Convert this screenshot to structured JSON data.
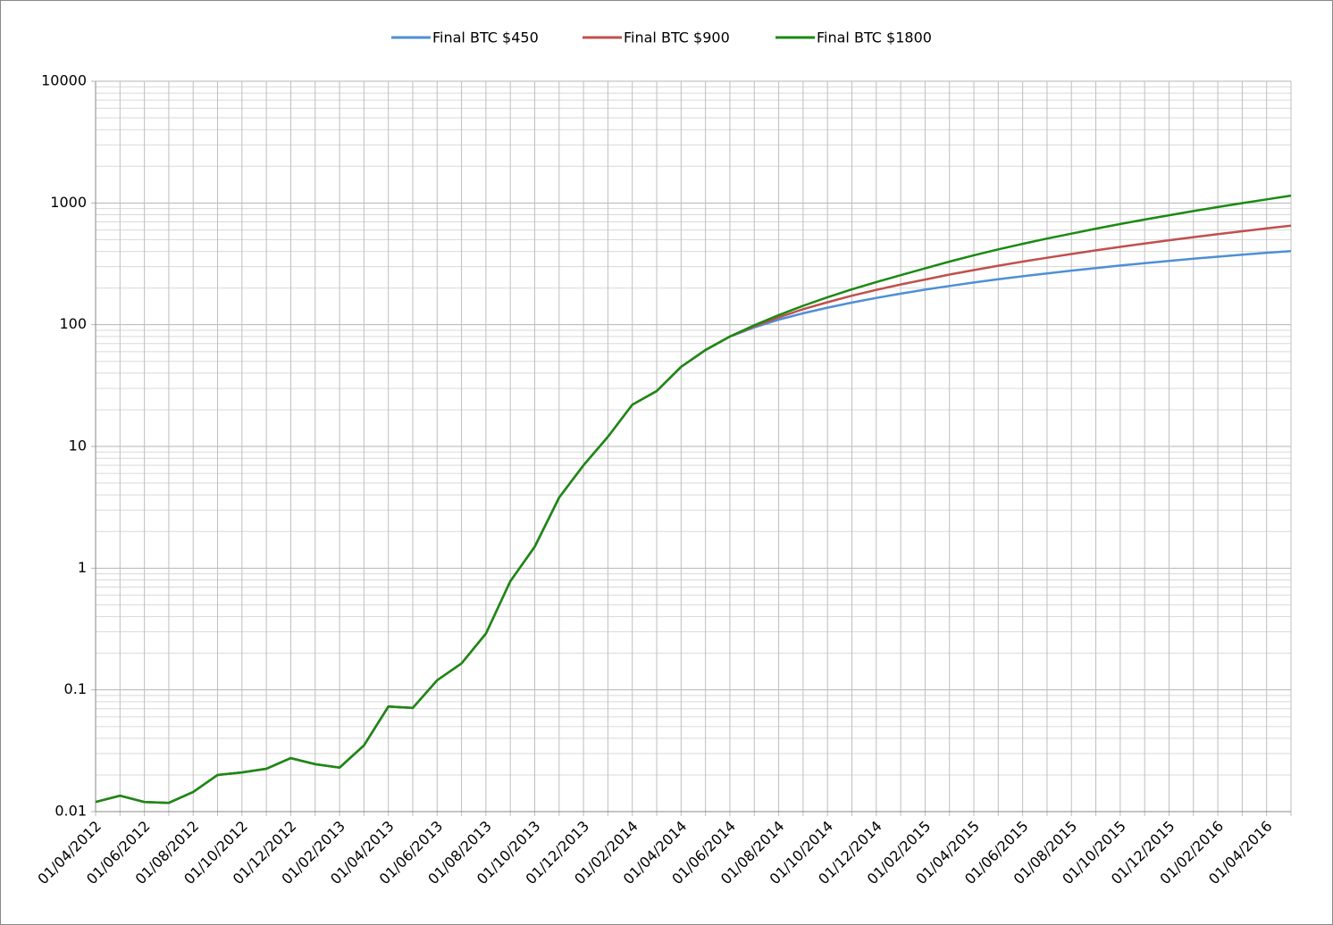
{
  "chart_data": {
    "type": "line",
    "categories": [
      "01/04/2012",
      null,
      "01/06/2012",
      null,
      "01/08/2012",
      null,
      "01/10/2012",
      null,
      "01/12/2012",
      null,
      "01/02/2013",
      null,
      "01/04/2013",
      null,
      "01/06/2013",
      null,
      "01/08/2013",
      null,
      "01/10/2013",
      null,
      "01/12/2013",
      null,
      "01/02/2014",
      null,
      "01/04/2014",
      null,
      "01/06/2014",
      null,
      "01/08/2014",
      null,
      "01/10/2014",
      null,
      "01/12/2014",
      null,
      "01/02/2015",
      null,
      "01/04/2015",
      null,
      "01/06/2015",
      null,
      "01/08/2015",
      null,
      "01/10/2015",
      null,
      "01/12/2015",
      null,
      "01/02/2016",
      null,
      "01/04/2016",
      null
    ],
    "series": [
      {
        "name": "Final BTC $450",
        "color": "#4f8fd6",
        "values": [
          0.012,
          0.0135,
          0.012,
          0.0118,
          0.0145,
          0.02,
          0.021,
          0.0225,
          0.0275,
          0.0245,
          0.023,
          0.035,
          0.073,
          0.071,
          0.12,
          0.165,
          0.29,
          0.78,
          1.5,
          3.8,
          7,
          12,
          22,
          28.5,
          45,
          62,
          80,
          95,
          110,
          124,
          138,
          152,
          166,
          180,
          194,
          208,
          222,
          236,
          250,
          264,
          278,
          292,
          306,
          320,
          334,
          348,
          362,
          376,
          390,
          402
        ]
      },
      {
        "name": "Final BTC $900",
        "color": "#c0504d",
        "values": [
          0.012,
          0.0135,
          0.012,
          0.0118,
          0.0145,
          0.02,
          0.021,
          0.0225,
          0.0275,
          0.0245,
          0.023,
          0.035,
          0.073,
          0.071,
          0.12,
          0.165,
          0.29,
          0.78,
          1.5,
          3.8,
          7,
          12,
          22,
          28.5,
          45,
          62,
          80,
          97,
          115,
          134,
          153,
          173,
          193,
          214,
          235,
          258,
          281,
          305,
          330,
          355,
          381,
          408,
          436,
          465,
          494,
          524,
          555,
          586,
          618,
          650
        ]
      },
      {
        "name": "Final BTC $1800",
        "color": "#1a8a12",
        "values": [
          0.012,
          0.0135,
          0.012,
          0.0118,
          0.0145,
          0.02,
          0.021,
          0.0225,
          0.0275,
          0.0245,
          0.023,
          0.035,
          0.073,
          0.071,
          0.12,
          0.165,
          0.29,
          0.78,
          1.5,
          3.8,
          7,
          12,
          22,
          28.5,
          45,
          62,
          80,
          99,
          120,
          143,
          168,
          195,
          224,
          255,
          290,
          330,
          372,
          416,
          462,
          510,
          560,
          615,
          672,
          731,
          793,
          858,
          926,
          997,
          1071,
          1150
        ]
      }
    ],
    "ylim": [
      0.01,
      10000
    ],
    "yticks": [
      0.01,
      0.1,
      1,
      10,
      100,
      1000,
      10000
    ],
    "log_y": true,
    "grid": true,
    "legend": "top"
  }
}
